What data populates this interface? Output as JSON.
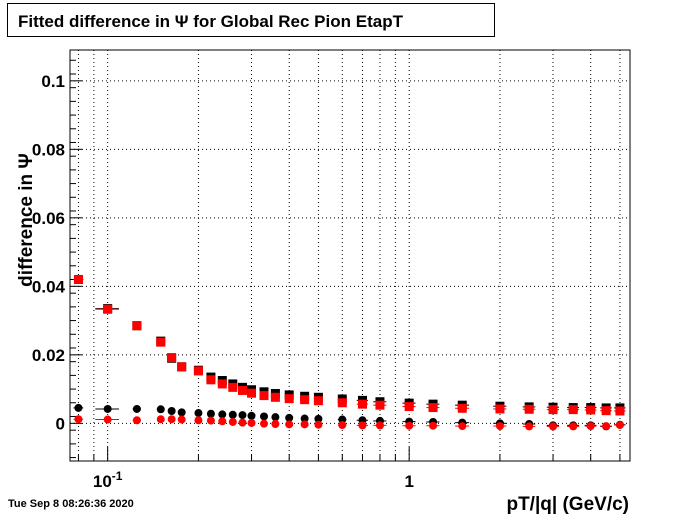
{
  "header": {
    "title": "Fitted difference in  Ψ  for Global Rec Pion EtapT",
    "timestamp": "Tue Sep  8 08:26:36 2020"
  },
  "chart_data": {
    "type": "scatter",
    "title": "Fitted difference in  Ψ  for Global Rec Pion EtapT",
    "xlabel": "pT/|q| (GeV/c)",
    "ylabel": "difference in  Ψ",
    "x_scale": "log",
    "xlim": [
      0.075,
      5.4
    ],
    "ylim": [
      -0.011,
      0.109
    ],
    "grid": true,
    "x_ticks": [
      {
        "value": 0.1,
        "base": "10",
        "exp": "-1"
      },
      {
        "value": 1,
        "label": "1"
      }
    ],
    "y_ticks": [
      {
        "value": 0,
        "label": "0"
      },
      {
        "value": 0.02,
        "label": "0.02"
      },
      {
        "value": 0.04,
        "label": "0.04"
      },
      {
        "value": 0.06,
        "label": "0.06"
      },
      {
        "value": 0.08,
        "label": "0.08"
      },
      {
        "value": 0.1,
        "label": "0.1"
      }
    ],
    "series": [
      {
        "marker": "square",
        "color": "#000000",
        "x": [
          0.08,
          0.1,
          0.125,
          0.15,
          0.163,
          0.176,
          0.2,
          0.22,
          0.24,
          0.26,
          0.28,
          0.3,
          0.33,
          0.36,
          0.4,
          0.45,
          0.5,
          0.6,
          0.7,
          0.8,
          1.0,
          1.2,
          1.5,
          2.0,
          2.5,
          3.0,
          3.5,
          4.0,
          4.5,
          5.0
        ],
        "y": [
          0.042,
          0.0335,
          0.0285,
          0.024,
          0.019,
          0.0165,
          0.0155,
          0.0135,
          0.0125,
          0.0115,
          0.0105,
          0.0098,
          0.0092,
          0.0087,
          0.0083,
          0.0079,
          0.0076,
          0.0071,
          0.0067,
          0.0063,
          0.0059,
          0.0056,
          0.0053,
          0.005,
          0.0048,
          0.0047,
          0.0046,
          0.0046,
          0.0045,
          0.0045
        ],
        "xerr": [
          0.003,
          0.009,
          0.004,
          0.002,
          0.002,
          0.002,
          0.004,
          0.003,
          0.003,
          0.003,
          0.003,
          0.003,
          0.004,
          0.005,
          0.006,
          0.007,
          0.008,
          0.02,
          0.03,
          0.04,
          0.05,
          0.06,
          0.08,
          0.1,
          0.12,
          0.14,
          0.16,
          0.18,
          0.2,
          0.22
        ]
      },
      {
        "marker": "square",
        "color": "#ff0000",
        "x": [
          0.08,
          0.1,
          0.125,
          0.15,
          0.163,
          0.176,
          0.2,
          0.22,
          0.24,
          0.26,
          0.28,
          0.3,
          0.33,
          0.36,
          0.4,
          0.45,
          0.5,
          0.6,
          0.7,
          0.8,
          1.0,
          1.2,
          1.5,
          2.0,
          2.5,
          3.0,
          3.5,
          4.0,
          4.5,
          5.0
        ],
        "y": [
          0.042,
          0.0333,
          0.0285,
          0.0237,
          0.0192,
          0.0165,
          0.0153,
          0.0127,
          0.0115,
          0.0105,
          0.0096,
          0.0088,
          0.0081,
          0.0076,
          0.0072,
          0.0069,
          0.0066,
          0.006,
          0.0056,
          0.0053,
          0.0049,
          0.0046,
          0.0044,
          0.0042,
          0.0041,
          0.004,
          0.004,
          0.0039,
          0.0037,
          0.0036
        ],
        "xerr": [
          0.003,
          0.009,
          0.004,
          0.002,
          0.002,
          0.002,
          0.004,
          0.003,
          0.003,
          0.003,
          0.003,
          0.003,
          0.004,
          0.005,
          0.006,
          0.007,
          0.008,
          0.02,
          0.03,
          0.04,
          0.05,
          0.06,
          0.08,
          0.1,
          0.12,
          0.14,
          0.16,
          0.18,
          0.2,
          0.22
        ]
      },
      {
        "marker": "circle",
        "color": "#000000",
        "x": [
          0.08,
          0.1,
          0.125,
          0.15,
          0.163,
          0.176,
          0.2,
          0.22,
          0.24,
          0.26,
          0.28,
          0.3,
          0.33,
          0.36,
          0.4,
          0.45,
          0.5,
          0.6,
          0.7,
          0.8,
          1.0,
          1.2,
          1.5,
          2.0,
          2.5,
          3.0,
          3.5,
          4.0,
          4.5,
          5.0
        ],
        "y": [
          0.0045,
          0.0042,
          0.0042,
          0.0041,
          0.0036,
          0.0032,
          0.003,
          0.0028,
          0.0026,
          0.0025,
          0.0024,
          0.0022,
          0.002,
          0.0018,
          0.0016,
          0.0014,
          0.0013,
          0.0011,
          0.0009,
          0.0007,
          0.0005,
          0.0004,
          0.0002,
          0.0,
          -0.0002,
          -0.0006,
          -0.0006,
          -0.0006,
          -0.0009,
          -0.0004
        ],
        "xerr": [
          0.003,
          0.009,
          0.004,
          0.002,
          0.002,
          0.002,
          0.004,
          0.003,
          0.003,
          0.003,
          0.003,
          0.003,
          0.004,
          0.005,
          0.006,
          0.007,
          0.008,
          0.02,
          0.03,
          0.04,
          0.05,
          0.06,
          0.08,
          0.1,
          0.12,
          0.14,
          0.16,
          0.18,
          0.2,
          0.22
        ]
      },
      {
        "marker": "circle",
        "color": "#ff0000",
        "x": [
          0.08,
          0.1,
          0.125,
          0.15,
          0.163,
          0.176,
          0.2,
          0.22,
          0.24,
          0.26,
          0.28,
          0.3,
          0.33,
          0.36,
          0.4,
          0.45,
          0.5,
          0.6,
          0.7,
          0.8,
          1.0,
          1.2,
          1.5,
          2.0,
          2.5,
          3.0,
          3.5,
          4.0,
          4.5,
          5.0
        ],
        "y": [
          0.0012,
          0.0011,
          0.0009,
          0.0012,
          0.0012,
          0.0011,
          0.0009,
          0.0008,
          0.0006,
          0.0004,
          0.0002,
          0.0001,
          -0.0001,
          -0.0002,
          -0.0003,
          -0.0003,
          -0.0004,
          -0.0005,
          -0.0006,
          -0.0006,
          -0.0007,
          -0.0007,
          -0.0008,
          -0.0008,
          -0.0009,
          -0.0009,
          -0.0009,
          -0.0008,
          -0.0008,
          -0.0005
        ],
        "xerr": [
          0.003,
          0.009,
          0.004,
          0.002,
          0.002,
          0.002,
          0.004,
          0.003,
          0.003,
          0.003,
          0.003,
          0.003,
          0.004,
          0.005,
          0.006,
          0.007,
          0.008,
          0.02,
          0.03,
          0.04,
          0.05,
          0.06,
          0.08,
          0.1,
          0.12,
          0.14,
          0.16,
          0.18,
          0.2,
          0.22
        ]
      }
    ]
  }
}
